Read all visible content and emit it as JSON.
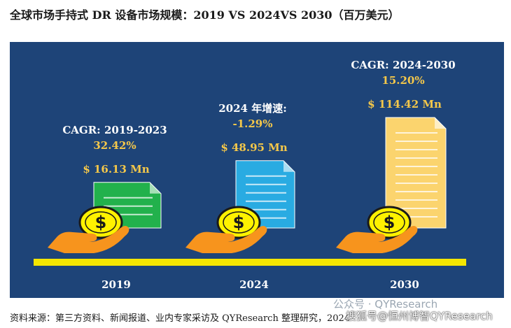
{
  "title": "全球市场手持式 DR 设备市场规模：2019 VS 2024VS 2030（百万美元）",
  "source": "资料来源：第三方资料、新闻报道、业内专家采访及 QYResearch 整理研究，2024",
  "watermark": "公众号 · QYResearch",
  "watermark2": "搜狐号@恒州博智QYResearch",
  "colors": {
    "panel": "#1e4478",
    "baseline": "#f5e600",
    "gold": "#f5c84a",
    "green": "#22b14c",
    "blue": "#29abe2",
    "yellow_doc": "#fbd46e",
    "hand": "#f7941d"
  },
  "chart_data": {
    "type": "bar",
    "categories": [
      "2019",
      "2024",
      "2030"
    ],
    "values": [
      16.13,
      48.95,
      114.42
    ],
    "value_labels": [
      "$ 16.13 Mn",
      "$ 48.95 Mn",
      "$ 114.42 Mn"
    ],
    "unit": "百万美元",
    "annotations": [
      {
        "label": "CAGR: 2019-2023",
        "value": "32.42%"
      },
      {
        "label": "2024 年增速:",
        "value": "-1.29%"
      },
      {
        "label": "CAGR: 2024-2030",
        "value": "15.20%"
      }
    ]
  }
}
